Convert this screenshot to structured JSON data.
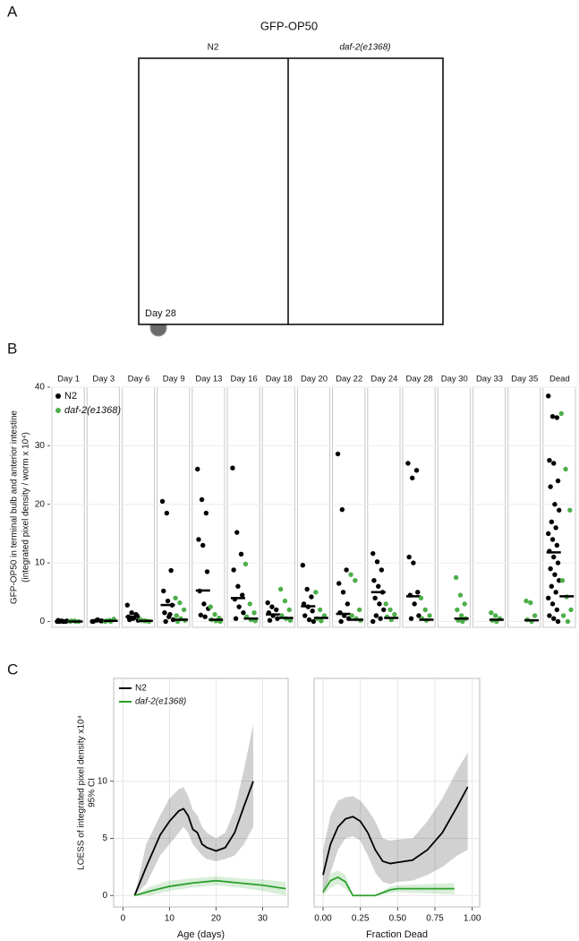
{
  "panels": [
    "A",
    "B",
    "C"
  ],
  "panel_a": {
    "title": "GFP-OP50",
    "groups": [
      "N2",
      "daf-2(e1368)"
    ],
    "caption": "Day 28"
  },
  "chart_data": [
    {
      "type": "strip",
      "categories": [
        "Day 1",
        "Day 3",
        "Day 6",
        "Day 9",
        "Day 13",
        "Day 16",
        "Day 18",
        "Day 20",
        "Day 22",
        "Day 24",
        "Day 28",
        "Day 30",
        "Day 33",
        "Day 35",
        "Dead"
      ],
      "ylabel": [
        "GFP-OP50 in terminal bulb and anterior intestine",
        "(integrated pixel density / worm x 10⁴)"
      ],
      "ylim": [
        -1,
        40
      ],
      "yticks": [
        0,
        10,
        20,
        30,
        40
      ],
      "legend": "upper left",
      "series": [
        {
          "name": "N2",
          "color": "#000000",
          "values": [
            [
              0,
              0.1,
              0,
              0.2,
              0,
              0.1,
              0,
              0
            ],
            [
              0,
              0.2,
              0.1,
              0,
              0.3,
              0.1
            ],
            [
              2.8,
              1.5,
              1.2,
              0.8,
              0.5,
              1.0,
              0.3,
              0.6,
              0.2
            ],
            [
              20.5,
              18.5,
              8.7,
              5.2,
              3.5,
              2.8,
              1.5,
              0.8,
              0.3,
              0,
              1.2
            ],
            [
              26,
              20.8,
              18.5,
              14,
              13,
              8.5,
              5.2,
              3,
              2.2,
              1.1,
              0.8
            ],
            [
              26.2,
              15.2,
              11.5,
              8.8,
              6,
              4.5,
              3.8,
              2.5,
              1.5,
              0.5
            ],
            [
              3.2,
              2.5,
              2,
              1.5,
              1,
              0.5,
              0.2
            ],
            [
              9.6,
              5.5,
              4.2,
              3,
              2.5,
              1.8,
              1,
              0.3,
              0
            ],
            [
              28.6,
              19.1,
              8.8,
              6.5,
              5,
              3,
              1.5,
              1,
              0.5,
              0
            ],
            [
              11.6,
              10.2,
              8.8,
              7,
              6,
              5,
              4,
              3,
              2,
              1,
              0.5,
              0
            ],
            [
              27,
              24.5,
              25.8,
              11,
              10,
              5,
              4.5,
              3,
              1,
              0.5
            ],
            [],
            [],
            [],
            [
              38.5,
              35,
              34.8,
              27.5,
              27,
              24,
              23,
              20,
              19,
              17,
              16,
              15,
              14,
              13,
              12,
              11,
              10,
              9,
              8,
              7,
              6,
              5,
              4,
              3,
              2,
              1,
              0.5,
              0
            ]
          ],
          "medians": [
            0.05,
            0.1,
            0.8,
            2.8,
            5.3,
            4,
            1.2,
            2.6,
            1.3,
            5,
            4.3,
            null,
            null,
            null,
            11.8
          ]
        },
        {
          "name": "daf-2(e1368)",
          "color": "#4daf4a",
          "values": [
            [
              0,
              0.1,
              0,
              0.1,
              0
            ],
            [
              0,
              0.2,
              0.4,
              0.1,
              0
            ],
            [
              0.3,
              0.1,
              0,
              0.2,
              0.1
            ],
            [
              4,
              3.2,
              2,
              1,
              0.5,
              0.2,
              0
            ],
            [
              2.5,
              1.2,
              0.6,
              0.3,
              0.1,
              0
            ],
            [
              9.8,
              3,
              1.5,
              0.8,
              0.3,
              0.1
            ],
            [
              5.5,
              3.5,
              2,
              1,
              0.5,
              0.2
            ],
            [
              5,
              2,
              1,
              0.5,
              0.1
            ],
            [
              8,
              7,
              2,
              1,
              0.5,
              0.2
            ],
            [
              3,
              2,
              1.2,
              0.8,
              0.3
            ],
            [
              4,
              2,
              1,
              0.5,
              0.2
            ],
            [
              7.5,
              4.5,
              3,
              2,
              1,
              0.5,
              0.2,
              0
            ],
            [
              1.5,
              1,
              0.5,
              0.2,
              0
            ],
            [
              3.5,
              3.2,
              1,
              0.3,
              0
            ],
            [
              35.5,
              26,
              19,
              7,
              4.2,
              2,
              1,
              0
            ]
          ],
          "medians": [
            0,
            0.1,
            0.1,
            0.3,
            0.3,
            0.5,
            0.6,
            0.6,
            0.3,
            0.6,
            0.3,
            0.5,
            0.3,
            0.2,
            4.3
          ]
        }
      ]
    },
    {
      "type": "loess",
      "xlabel": "Age (days)",
      "ylabel": [
        "LOESS of integrated pixel density x10⁴",
        "95% CI"
      ],
      "xlim": [
        -2,
        35.5
      ],
      "xticks": [
        0,
        10,
        20,
        30
      ],
      "ylim": [
        -1,
        19
      ],
      "yticks": [
        0,
        5,
        10
      ],
      "show_ytick_labels": true,
      "legend": "upper left",
      "series": [
        {
          "name": "N2",
          "color": "#000000",
          "x": [
            2.5,
            5,
            8,
            10,
            12,
            13,
            14,
            15,
            16,
            17,
            18,
            20,
            22,
            24,
            26,
            28
          ],
          "values": [
            0,
            2.5,
            5.3,
            6.5,
            7.4,
            7.6,
            7,
            5.8,
            5.5,
            4.5,
            4.2,
            3.9,
            4.2,
            5.5,
            7.8,
            10
          ],
          "lower": [
            0,
            1,
            3.5,
            4.5,
            5.5,
            6,
            5.5,
            4.5,
            4,
            3.5,
            3.2,
            3,
            3.2,
            3.5,
            4.5,
            6
          ],
          "upper": [
            0,
            4.5,
            7,
            8.5,
            9.3,
            9.5,
            8.7,
            7.5,
            7,
            6,
            5.5,
            5,
            5.5,
            7.5,
            11,
            15
          ]
        },
        {
          "name": "daf-2(e1368)",
          "color": "#2ca02c",
          "x": [
            2.5,
            6,
            10,
            15,
            20,
            25,
            30,
            35
          ],
          "values": [
            0,
            0.4,
            0.8,
            1.1,
            1.3,
            1.1,
            0.9,
            0.6
          ],
          "lower": [
            0,
            0,
            0.4,
            0.7,
            0.9,
            0.7,
            0.4,
            0
          ],
          "upper": [
            0,
            0.8,
            1.3,
            1.5,
            1.7,
            1.5,
            1.4,
            1.2
          ]
        }
      ]
    },
    {
      "type": "loess",
      "xlabel": "Fraction Dead",
      "xlim": [
        -0.06,
        1.05
      ],
      "xticks": [
        {
          "value": 0,
          "label": "0.00"
        },
        {
          "value": 0.25,
          "label": "0.25"
        },
        {
          "value": 0.5,
          "label": "0.50"
        },
        {
          "value": 0.75,
          "label": "0.75"
        },
        {
          "value": 1,
          "label": "1.00"
        }
      ],
      "ylim": [
        -1,
        19
      ],
      "yticks": [
        0,
        5,
        10
      ],
      "show_ytick_labels": false,
      "series": [
        {
          "color": "#000000",
          "x": [
            0,
            0.05,
            0.1,
            0.15,
            0.2,
            0.25,
            0.3,
            0.35,
            0.4,
            0.45,
            0.5,
            0.6,
            0.7,
            0.8,
            0.9,
            0.97
          ],
          "values": [
            1.8,
            4.5,
            6,
            6.7,
            6.9,
            6.5,
            5.5,
            4,
            3,
            2.8,
            2.9,
            3.1,
            4,
            5.5,
            7.8,
            9.5
          ],
          "lower": [
            0,
            2,
            4,
            5,
            5.2,
            4.8,
            3.5,
            2,
            1.2,
            1,
            1.2,
            1.3,
            1.8,
            2.5,
            3.5,
            4
          ],
          "upper": [
            4,
            7,
            8.3,
            8.6,
            8.7,
            8.3,
            7.5,
            6.5,
            5,
            4.8,
            4.9,
            5,
            6.5,
            8.5,
            11,
            12.5
          ]
        },
        {
          "color": "#2ca02c",
          "x": [
            0,
            0.05,
            0.1,
            0.15,
            0.2,
            0.3,
            0.35,
            0.45,
            0.5,
            0.7,
            0.88
          ],
          "values": [
            0.3,
            1.3,
            1.6,
            1.2,
            0,
            0,
            0,
            0.5,
            0.6,
            0.6,
            0.6
          ],
          "lower": [
            0,
            0.7,
            1.0,
            0.6,
            0,
            0,
            0,
            0.2,
            0.3,
            0.2,
            0.1
          ],
          "upper": [
            0.6,
            1.9,
            2.2,
            1.8,
            0,
            0,
            0,
            0.8,
            0.9,
            1.0,
            1.1
          ]
        }
      ]
    }
  ]
}
